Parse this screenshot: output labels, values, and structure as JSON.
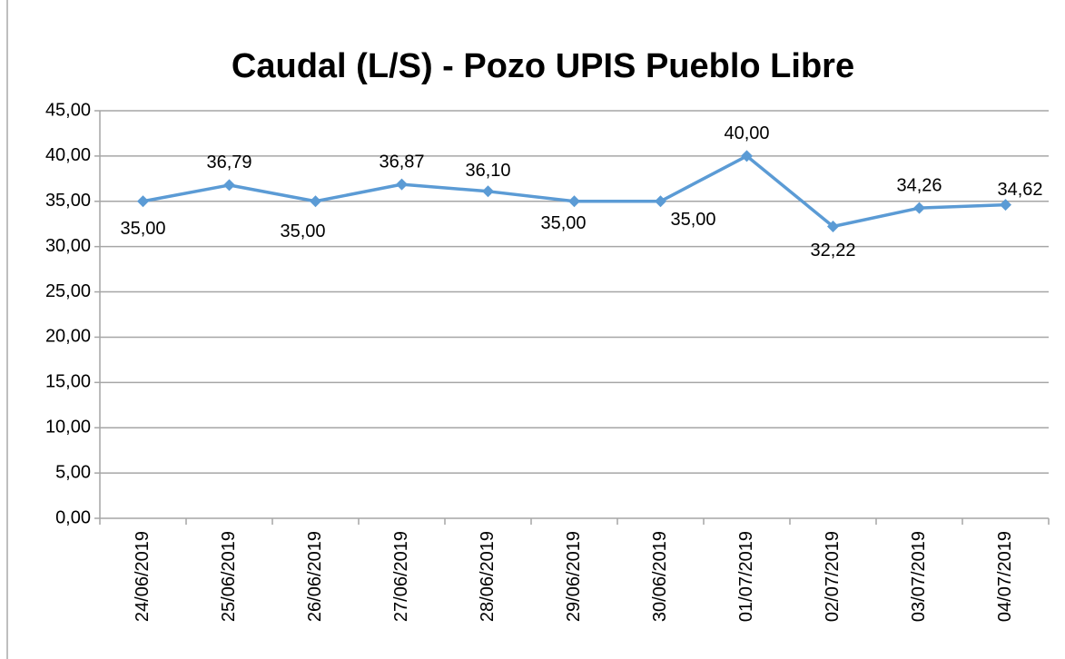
{
  "chart_data": {
    "type": "line",
    "title": "Caudal (L/S) - Pozo UPIS Pueblo Libre",
    "categories": [
      "24/06/2019",
      "25/06/2019",
      "26/06/2019",
      "27/06/2019",
      "28/06/2019",
      "29/06/2019",
      "30/06/2019",
      "01/07/2019",
      "02/07/2019",
      "03/07/2019",
      "04/07/2019"
    ],
    "series": [
      {
        "name": "Caudal",
        "color": "#5b9bd5",
        "values": [
          35.0,
          36.79,
          35.0,
          36.87,
          36.1,
          35.0,
          35.0,
          40.0,
          32.22,
          34.26,
          34.62
        ],
        "value_labels": [
          "35,00",
          "36,79",
          "35,00",
          "36,87",
          "36,10",
          "35,00",
          "35,00",
          "40,00",
          "32,22",
          "34,26",
          "34,62"
        ]
      }
    ],
    "ylim": [
      0,
      45
    ],
    "yticks": [
      {
        "value": 0,
        "label": "0,00"
      },
      {
        "value": 5,
        "label": "5,00"
      },
      {
        "value": 10,
        "label": "10,00"
      },
      {
        "value": 15,
        "label": "15,00"
      },
      {
        "value": 20,
        "label": "20,00"
      },
      {
        "value": 25,
        "label": "25,00"
      },
      {
        "value": 30,
        "label": "30,00"
      },
      {
        "value": 35,
        "label": "35,00"
      },
      {
        "value": 40,
        "label": "40,00"
      },
      {
        "value": 45,
        "label": "45,00"
      }
    ],
    "grid": true
  }
}
